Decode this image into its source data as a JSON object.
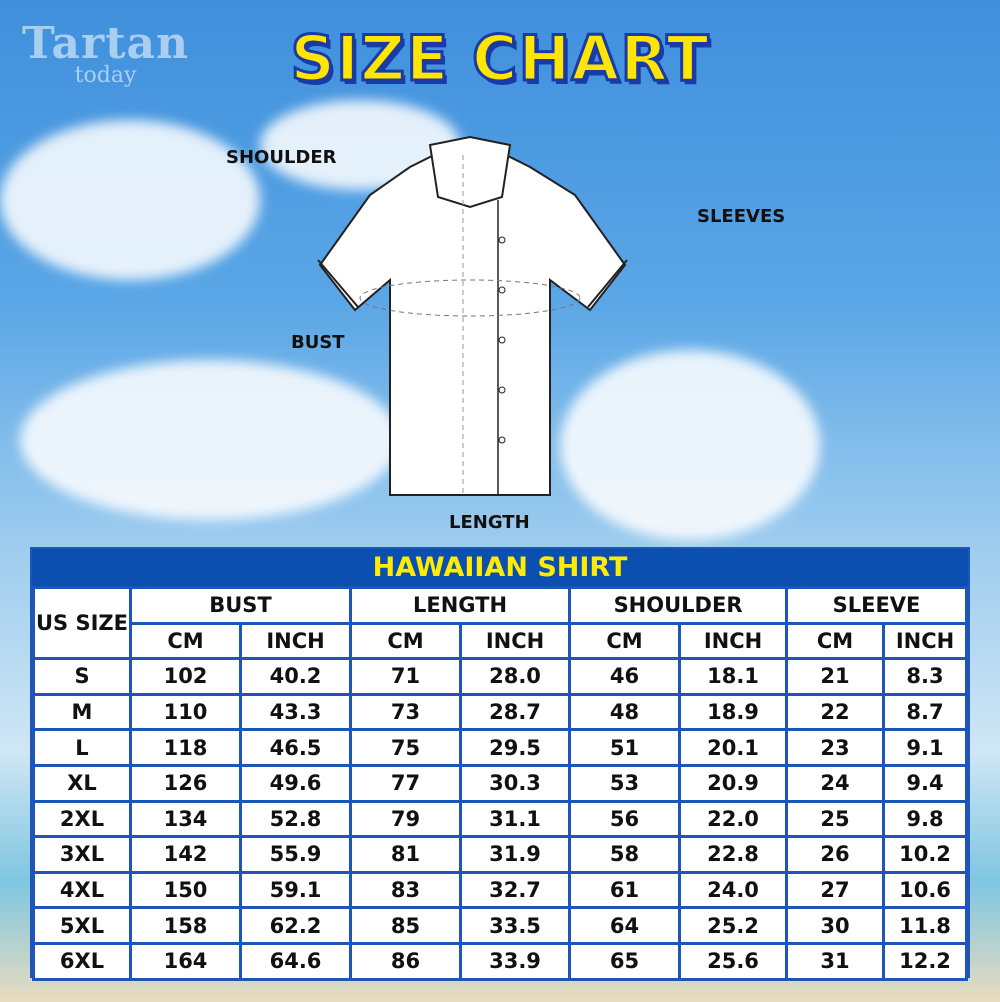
{
  "logo": {
    "line1": "Tartan",
    "line2": "today"
  },
  "title": "SIZE CHART",
  "diagram_labels": {
    "shoulder": "SHOULDER",
    "sleeves": "SLEEVES",
    "bust": "BUST",
    "length": "LENGTH"
  },
  "table": {
    "title": "HAWAIIAN SHIRT",
    "size_header": "US SIZE",
    "groups": [
      "BUST",
      "LENGTH",
      "SHOULDER",
      "SLEEVE"
    ],
    "units": [
      "CM",
      "INCH",
      "CM",
      "INCH",
      "CM",
      "INCH",
      "CM",
      "INCH"
    ],
    "rows": [
      [
        "S",
        "102",
        "40.2",
        "71",
        "28.0",
        "46",
        "18.1",
        "21",
        "8.3"
      ],
      [
        "M",
        "110",
        "43.3",
        "73",
        "28.7",
        "48",
        "18.9",
        "22",
        "8.7"
      ],
      [
        "L",
        "118",
        "46.5",
        "75",
        "29.5",
        "51",
        "20.1",
        "23",
        "9.1"
      ],
      [
        "XL",
        "126",
        "49.6",
        "77",
        "30.3",
        "53",
        "20.9",
        "24",
        "9.4"
      ],
      [
        "2XL",
        "134",
        "52.8",
        "79",
        "31.1",
        "56",
        "22.0",
        "25",
        "9.8"
      ],
      [
        "3XL",
        "142",
        "55.9",
        "81",
        "31.9",
        "58",
        "22.8",
        "26",
        "10.2"
      ],
      [
        "4XL",
        "150",
        "59.1",
        "83",
        "32.7",
        "61",
        "24.0",
        "27",
        "10.6"
      ],
      [
        "5XL",
        "158",
        "62.2",
        "85",
        "33.5",
        "64",
        "25.2",
        "30",
        "11.8"
      ],
      [
        "6XL",
        "164",
        "64.6",
        "86",
        "33.9",
        "65",
        "25.6",
        "31",
        "12.2"
      ]
    ]
  },
  "colors": {
    "title_fill": "#ffe500",
    "title_outline": "#1a3aa8",
    "table_border": "#1f55b8",
    "table_title_text": "#ffec00"
  }
}
